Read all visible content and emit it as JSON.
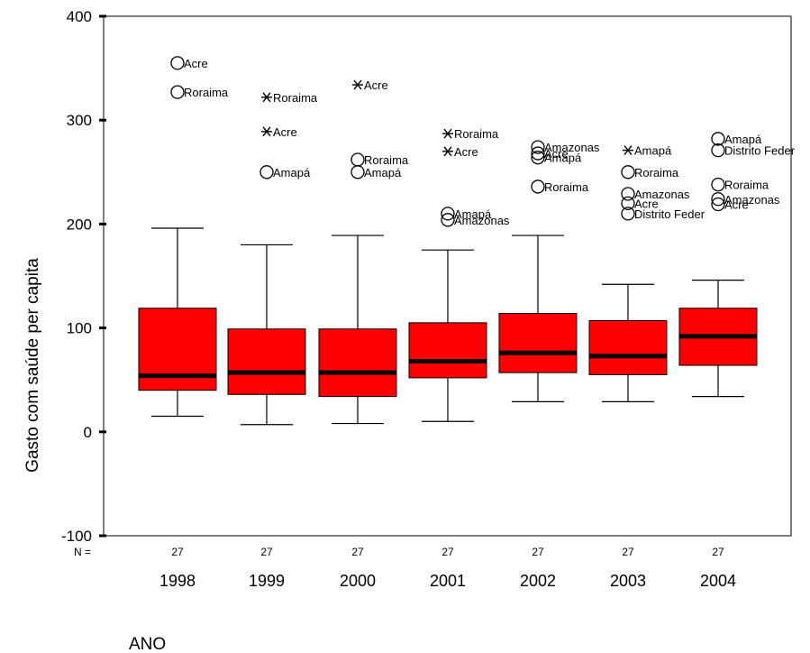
{
  "chart_data": {
    "type": "boxplot",
    "title": "",
    "xlabel": "ANO",
    "ylabel": "Gasto com saúde per capita",
    "ylim": [
      -100,
      400
    ],
    "yticks": [
      -100,
      0,
      100,
      200,
      300,
      400
    ],
    "n_label": "N =",
    "fill_color": "#ff0000",
    "categories": [
      "1998",
      "1999",
      "2000",
      "2001",
      "2002",
      "2003",
      "2004"
    ],
    "boxes": [
      {
        "year": "1998",
        "n": "27",
        "whisker_low": 15,
        "q1": 40,
        "median": 54,
        "q3": 119,
        "whisker_high": 196,
        "outliers": [
          {
            "label": "Acre",
            "value": 355,
            "marker": "circle"
          },
          {
            "label": "Roraima",
            "value": 327,
            "marker": "circle"
          }
        ]
      },
      {
        "year": "1999",
        "n": "27",
        "whisker_low": 7,
        "q1": 36,
        "median": 57,
        "q3": 99,
        "whisker_high": 180,
        "outliers": [
          {
            "label": "Roraima",
            "value": 322,
            "marker": "star"
          },
          {
            "label": "Acre",
            "value": 289,
            "marker": "star"
          },
          {
            "label": "Amapá",
            "value": 250,
            "marker": "circle"
          }
        ]
      },
      {
        "year": "2000",
        "n": "27",
        "whisker_low": 8,
        "q1": 34,
        "median": 57,
        "q3": 99,
        "whisker_high": 189,
        "outliers": [
          {
            "label": "Acre",
            "value": 334,
            "marker": "star"
          },
          {
            "label": "Roraima",
            "value": 262,
            "marker": "circle"
          },
          {
            "label": "Amapá",
            "value": 250,
            "marker": "circle"
          }
        ]
      },
      {
        "year": "2001",
        "n": "27",
        "whisker_low": 10,
        "q1": 52,
        "median": 68,
        "q3": 105,
        "whisker_high": 175,
        "outliers": [
          {
            "label": "Roraima",
            "value": 287,
            "marker": "star"
          },
          {
            "label": "Acre",
            "value": 270,
            "marker": "star"
          },
          {
            "label": "Amapá",
            "value": 210,
            "marker": "circle"
          },
          {
            "label": "Amazonas",
            "value": 204,
            "marker": "circle"
          }
        ]
      },
      {
        "year": "2002",
        "n": "27",
        "whisker_low": 29,
        "q1": 57,
        "median": 76,
        "q3": 114,
        "whisker_high": 189,
        "outliers": [
          {
            "label": "Amazonas",
            "value": 274,
            "marker": "circle"
          },
          {
            "label": "Acre",
            "value": 268,
            "marker": "circle"
          },
          {
            "label": "Amapá",
            "value": 264,
            "marker": "circle"
          },
          {
            "label": "Roraima",
            "value": 236,
            "marker": "circle"
          }
        ]
      },
      {
        "year": "2003",
        "n": "27",
        "whisker_low": 29,
        "q1": 55,
        "median": 73,
        "q3": 107,
        "whisker_high": 142,
        "outliers": [
          {
            "label": "Amapá",
            "value": 271,
            "marker": "star"
          },
          {
            "label": "Roraima",
            "value": 250,
            "marker": "circle"
          },
          {
            "label": "Amazonas",
            "value": 229,
            "marker": "circle"
          },
          {
            "label": "Acre",
            "value": 220,
            "marker": "circle"
          },
          {
            "label": "Distrito Feder",
            "value": 210,
            "marker": "circle"
          }
        ]
      },
      {
        "year": "2004",
        "n": "27",
        "whisker_low": 34,
        "q1": 64,
        "median": 92,
        "q3": 119,
        "whisker_high": 146,
        "outliers": [
          {
            "label": "Amapá",
            "value": 282,
            "marker": "circle"
          },
          {
            "label": "Distrito Feder",
            "value": 271,
            "marker": "circle"
          },
          {
            "label": "Roraima",
            "value": 238,
            "marker": "circle"
          },
          {
            "label": "Amazonas",
            "value": 224,
            "marker": "circle"
          },
          {
            "label": "Acre",
            "value": 219,
            "marker": "circle"
          }
        ]
      }
    ]
  }
}
